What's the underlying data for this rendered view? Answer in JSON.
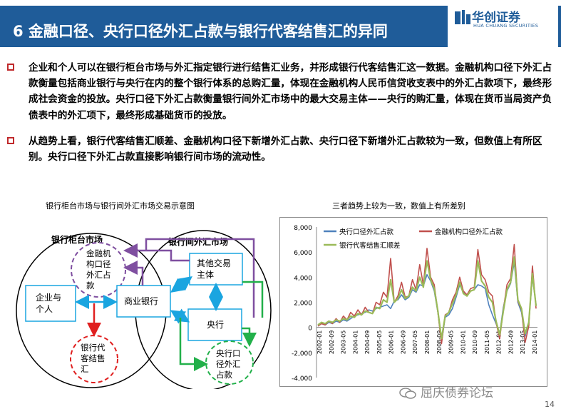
{
  "header": {
    "title": "6  金融口径、央行口径外汇占款与银行代客结售汇的异同",
    "logo_main": "华创证券",
    "logo_sub": "HUA CHUANG SECURITIES"
  },
  "bullets": [
    "企业和个人可以在银行柜台市场与外汇指定银行进行结售汇业务，并形成银行代客结售汇这一数据。金融机构口径下外汇占款衡量包括商业银行与央行在内的整个银行体系的总购汇量，体现在金融机构人民币信贷收支表中的外汇占款项下，最终形成社会资金的投放。央行口径下外汇占款衡量银行间外汇市场中的最大交易主体——央行的购汇量，体现在货币当局资产负债表中的外汇项下，最终形成基础货币的投放。",
    "从趋势上看，银行代客结售汇顺差、金融机构口径下新增外汇占款、央行口径下新增外汇占款较为一致，但数值上有所区别。央行口径下外汇占款直接影响银行间市场的流动性。"
  ],
  "diagram": {
    "caption": "银行柜台市场与银行间外汇市场交易示意图",
    "left_market": "银行柜台市场",
    "right_market": "银行间外汇市场",
    "fin_fx": [
      "金融机",
      "构口径",
      "外汇占",
      "款"
    ],
    "enterprise": [
      "企业与",
      "个人"
    ],
    "commercial_bank": "商业银行",
    "other_entities": [
      "其他交易",
      "主体"
    ],
    "central_bank": "央行",
    "bank_client": [
      "银行代",
      "客结售",
      "汇"
    ],
    "cb_fx": [
      "央行口",
      "径外汇",
      "占款"
    ]
  },
  "chart_data": {
    "caption": "三者趋势上较为一致，数值上有所差别",
    "type": "line",
    "ylim": [
      -4000,
      8000
    ],
    "yticks": [
      "8,000",
      "6,000",
      "4,000",
      "2,000",
      "0",
      "-2,000",
      "-4,000"
    ],
    "xticks": [
      "2002-01",
      "2002-09",
      "2003-05",
      "2004-01",
      "2004-09",
      "2005-05",
      "2006-01",
      "2006-09",
      "2007-05",
      "2008-01",
      "2008-09",
      "2009-05",
      "2010-01",
      "2010-09",
      "2011-05",
      "2012-01",
      "2012-09",
      "2013-05",
      "2014-01"
    ],
    "series": [
      {
        "name": "央行口径外汇占款",
        "color": "#4f81bd",
        "values": [
          100,
          300,
          200,
          400,
          300,
          500,
          400,
          600,
          500,
          700,
          900,
          1000,
          1100,
          1200,
          1400,
          1300,
          1500,
          1600,
          1700,
          1800,
          1500,
          2100,
          2200,
          2600,
          2200,
          2400,
          3000,
          2800,
          3400,
          3300,
          4200,
          3700,
          2900,
          1200,
          -1200,
          800,
          1000,
          1500,
          2400,
          3400,
          2800,
          2600,
          2900,
          3000,
          3400,
          3300,
          3100,
          1800,
          1000,
          300,
          -500,
          1600,
          2900,
          3500,
          5200,
          2000,
          1200,
          -700,
          400,
          4000,
          1800
        ]
      },
      {
        "name": "金融机构口径外汇占款",
        "color": "#c0504d",
        "values": [
          100,
          300,
          200,
          500,
          300,
          700,
          400,
          900,
          600,
          1200,
          900,
          1400,
          1000,
          1600,
          1200,
          1100,
          2000,
          1800,
          2800,
          2400,
          5500,
          2000,
          2500,
          3600,
          2400,
          2500,
          3800,
          3000,
          5000,
          3400,
          6300,
          4000,
          3400,
          1200,
          -1300,
          1000,
          1200,
          2200,
          2800,
          4000,
          2900,
          2600,
          3100,
          3200,
          6200,
          4200,
          3800,
          2800,
          2500,
          400,
          -900,
          1400,
          3400,
          3900,
          6600,
          2100,
          1400,
          -1200,
          100,
          4900,
          1500
        ]
      },
      {
        "name": "银行代客结售汇顺差",
        "color": "#9bbb59",
        "values": [
          200,
          400,
          300,
          500,
          400,
          600,
          500,
          700,
          600,
          900,
          800,
          1100,
          1000,
          1300,
          1200,
          1100,
          1600,
          1500,
          2200,
          2000,
          3800,
          2000,
          2300,
          3000,
          2300,
          2500,
          3200,
          2900,
          4000,
          3200,
          5300,
          3800,
          3100,
          1300,
          -900,
          900,
          1200,
          1900,
          2600,
          3600,
          2700,
          2500,
          2900,
          3000,
          5300,
          3700,
          3300,
          2400,
          2000,
          500,
          -600,
          1300,
          3000,
          3600,
          5600,
          2200,
          1500,
          -500,
          400,
          4300,
          1700
        ]
      }
    ]
  },
  "watermark": "屈庆债券论坛",
  "page_number": "14"
}
